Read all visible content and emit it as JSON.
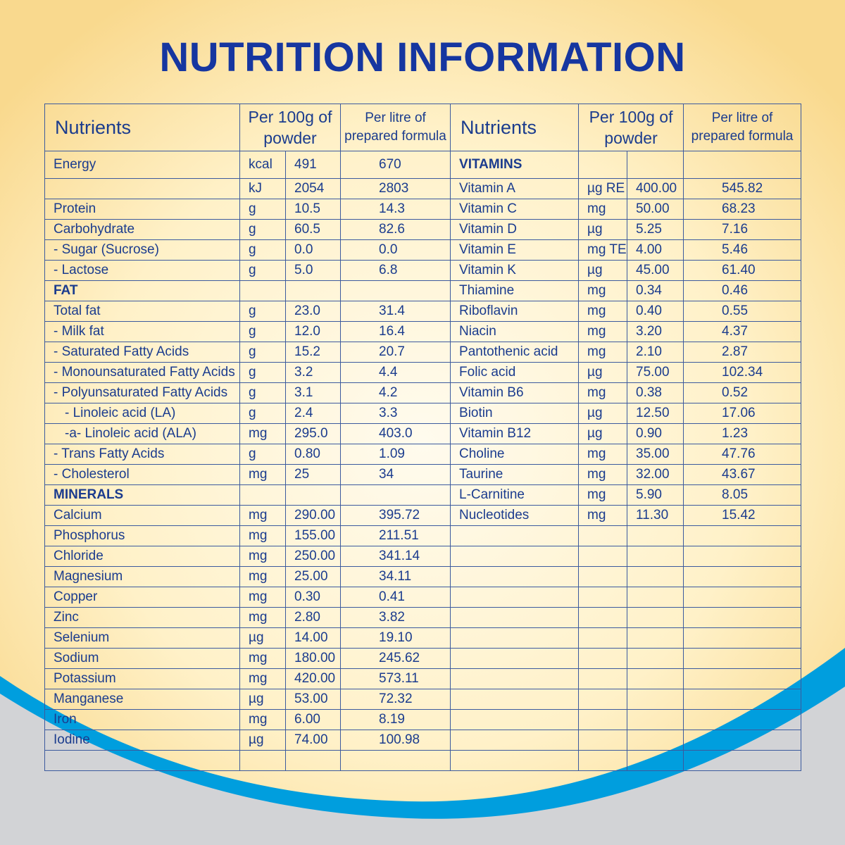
{
  "title": "NUTRITION INFORMATION",
  "colors": {
    "title": "#1636a0",
    "text": "#1b3c8e",
    "wave": "#009ede",
    "gray": "#d2d3d6",
    "cream": "#fff4d6"
  },
  "headers": {
    "nutrients": "Nutrients",
    "per100g_line1": "Per 100g of",
    "per100g_line2": "powder",
    "perlitre_line1": "Per litre of",
    "perlitre_line2": "prepared formula"
  },
  "left_rows": [
    {
      "name": "Energy",
      "unit": "kcal",
      "per100g": "491",
      "perlitre": "670"
    },
    {
      "name": "",
      "unit": "kJ",
      "per100g": "2054",
      "perlitre": "2803"
    },
    {
      "name": "Protein",
      "unit": "g",
      "per100g": "10.5",
      "perlitre": "14.3"
    },
    {
      "name": "Carbohydrate",
      "unit": "g",
      "per100g": "60.5",
      "perlitre": "82.6"
    },
    {
      "name": "- Sugar (Sucrose)",
      "unit": "g",
      "per100g": "0.0",
      "perlitre": "0.0"
    },
    {
      "name": "- Lactose",
      "unit": "g",
      "per100g": "5.0",
      "perlitre": "6.8"
    },
    {
      "name": "FAT",
      "section": true
    },
    {
      "name": "Total fat",
      "unit": "g",
      "per100g": "23.0",
      "perlitre": "31.4"
    },
    {
      "name": "- Milk fat",
      "unit": "g",
      "per100g": "12.0",
      "perlitre": "16.4"
    },
    {
      "name": "- Saturated Fatty Acids",
      "unit": "g",
      "per100g": "15.2",
      "perlitre": "20.7"
    },
    {
      "name": "- Monounsaturated Fatty Acids",
      "unit": "g",
      "per100g": "3.2",
      "perlitre": "4.4"
    },
    {
      "name": "- Polyunsaturated Fatty Acids",
      "unit": "g",
      "per100g": "3.1",
      "perlitre": "4.2"
    },
    {
      "name": "    - Linoleic acid (LA)",
      "unit": "g",
      "per100g": "2.4",
      "perlitre": "3.3"
    },
    {
      "name": "    -a- Linoleic acid (ALA)",
      "unit": "mg",
      "per100g": "295.0",
      "perlitre": "403.0"
    },
    {
      "name": "- Trans Fatty Acids",
      "unit": "g",
      "per100g": "0.80",
      "perlitre": "1.09"
    },
    {
      "name": "- Cholesterol",
      "unit": "mg",
      "per100g": "25",
      "perlitre": "34"
    },
    {
      "name": "MINERALS",
      "section": true
    },
    {
      "name": "Calcium",
      "unit": "mg",
      "per100g": "290.00",
      "perlitre": "395.72"
    },
    {
      "name": "Phosphorus",
      "unit": "mg",
      "per100g": "155.00",
      "perlitre": "211.51"
    },
    {
      "name": "Chloride",
      "unit": "mg",
      "per100g": "250.00",
      "perlitre": "341.14"
    },
    {
      "name": "Magnesium",
      "unit": "mg",
      "per100g": "25.00",
      "perlitre": "34.11"
    },
    {
      "name": "Copper",
      "unit": "mg",
      "per100g": "0.30",
      "perlitre": "0.41"
    },
    {
      "name": "Zinc",
      "unit": "mg",
      "per100g": "2.80",
      "perlitre": "3.82"
    },
    {
      "name": "Selenium",
      "unit": "µg",
      "per100g": "14.00",
      "perlitre": "19.10"
    },
    {
      "name": "Sodium",
      "unit": "mg",
      "per100g": "180.00",
      "perlitre": "245.62"
    },
    {
      "name": "Potassium",
      "unit": "mg",
      "per100g": "420.00",
      "perlitre": "573.11"
    },
    {
      "name": "Manganese",
      "unit": "µg",
      "per100g": "53.00",
      "perlitre": "72.32"
    },
    {
      "name": "Iron",
      "unit": "mg",
      "per100g": "6.00",
      "perlitre": "8.19"
    },
    {
      "name": "Iodine",
      "unit": "µg",
      "per100g": "74.00",
      "perlitre": "100.98"
    }
  ],
  "right_rows": [
    {
      "name": "VITAMINS",
      "section": true
    },
    {
      "name": "Vitamin A",
      "unit": "µg RE",
      "per100g": "400.00",
      "perlitre": "545.82"
    },
    {
      "name": "Vitamin C",
      "unit": "mg",
      "per100g": "50.00",
      "perlitre": "68.23"
    },
    {
      "name": "Vitamin D",
      "unit": "µg",
      "per100g": "5.25",
      "perlitre": "7.16"
    },
    {
      "name": "Vitamin E",
      "unit": "mg TE",
      "per100g": "4.00",
      "perlitre": "5.46"
    },
    {
      "name": "Vitamin K",
      "unit": "µg",
      "per100g": "45.00",
      "perlitre": "61.40"
    },
    {
      "name": "Thiamine",
      "unit": "mg",
      "per100g": "0.34",
      "perlitre": "0.46"
    },
    {
      "name": "Riboflavin",
      "unit": "mg",
      "per100g": "0.40",
      "perlitre": "0.55"
    },
    {
      "name": "Niacin",
      "unit": "mg",
      "per100g": "3.20",
      "perlitre": "4.37"
    },
    {
      "name": "Pantothenic acid",
      "unit": "mg",
      "per100g": "2.10",
      "perlitre": "2.87"
    },
    {
      "name": "Folic acid",
      "unit": "µg",
      "per100g": "75.00",
      "perlitre": "102.34"
    },
    {
      "name": "Vitamin B6",
      "unit": "mg",
      "per100g": "0.38",
      "perlitre": "0.52"
    },
    {
      "name": "Biotin",
      "unit": "µg",
      "per100g": "12.50",
      "perlitre": "17.06"
    },
    {
      "name": "Vitamin B12",
      "unit": "µg",
      "per100g": "0.90",
      "perlitre": "1.23"
    },
    {
      "name": "Choline",
      "unit": "mg",
      "per100g": "35.00",
      "perlitre": "47.76"
    },
    {
      "name": "Taurine",
      "unit": "mg",
      "per100g": "32.00",
      "perlitre": "43.67"
    },
    {
      "name": "L-Carnitine",
      "unit": "mg",
      "per100g": "5.90",
      "perlitre": "8.05"
    },
    {
      "name": "Nucleotides",
      "unit": "mg",
      "per100g": "11.30",
      "perlitre": "15.42"
    }
  ]
}
